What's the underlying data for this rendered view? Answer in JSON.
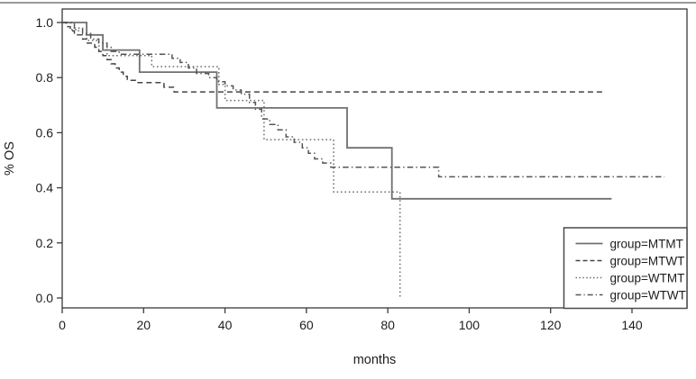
{
  "figure": {
    "background": "#ffffff",
    "top_border_color": "#9a9a9a",
    "axis_color": "#3a3a3a",
    "text_color": "#1d1d1d"
  },
  "chart_data": {
    "type": "line",
    "subtype": "kaplan-meier-step",
    "title": "",
    "xlabel": "months",
    "ylabel": "% OS",
    "xlim": [
      0,
      153
    ],
    "ylim": [
      -0.04,
      1.05
    ],
    "x_ticks": [
      0,
      20,
      40,
      60,
      80,
      100,
      120,
      140
    ],
    "y_ticks": [
      0.0,
      0.2,
      0.4,
      0.6,
      0.8,
      1.0
    ],
    "grid": false,
    "legend_position": "bottom-right",
    "series": [
      {
        "name": "group=MTMT",
        "line_style": "solid",
        "color": "#707070",
        "end_month": 135,
        "steps": [
          [
            0,
            1.0
          ],
          [
            6,
            0.955
          ],
          [
            10,
            0.9
          ],
          [
            19,
            0.82
          ],
          [
            38,
            0.69
          ],
          [
            70,
            0.545
          ],
          [
            81,
            0.36
          ]
        ]
      },
      {
        "name": "group=MTWT",
        "line_style": "dashed",
        "color": "#454545",
        "end_month": 133,
        "steps": [
          [
            0,
            1.0
          ],
          [
            1,
            0.985
          ],
          [
            2,
            0.97
          ],
          [
            3,
            0.955
          ],
          [
            5,
            0.94
          ],
          [
            6,
            0.925
          ],
          [
            8,
            0.91
          ],
          [
            9,
            0.895
          ],
          [
            10,
            0.88
          ],
          [
            11,
            0.865
          ],
          [
            12,
            0.85
          ],
          [
            13,
            0.835
          ],
          [
            14,
            0.82
          ],
          [
            15,
            0.805
          ],
          [
            16,
            0.79
          ],
          [
            18,
            0.782
          ],
          [
            25,
            0.765
          ],
          [
            27.5,
            0.748
          ]
        ]
      },
      {
        "name": "group=WTMT",
        "line_style": "dotted",
        "color": "#6e6e6e",
        "end_month": 83,
        "steps": [
          [
            0,
            1.0
          ],
          [
            2,
            0.975
          ],
          [
            4,
            0.955
          ],
          [
            6,
            0.935
          ],
          [
            9,
            0.915
          ],
          [
            11,
            0.88
          ],
          [
            22,
            0.84
          ],
          [
            38.5,
            0.775
          ],
          [
            40,
            0.717
          ],
          [
            49.6,
            0.575
          ],
          [
            66.7,
            0.385
          ],
          [
            83,
            0.0
          ]
        ]
      },
      {
        "name": "group=WTWT",
        "line_style": "dashdot",
        "color": "#555555",
        "end_month": 148,
        "steps": [
          [
            0,
            1.0
          ],
          [
            3,
            0.98
          ],
          [
            5,
            0.96
          ],
          [
            7,
            0.94
          ],
          [
            9,
            0.925
          ],
          [
            11,
            0.91
          ],
          [
            12,
            0.895
          ],
          [
            14,
            0.885
          ],
          [
            27,
            0.87
          ],
          [
            29,
            0.855
          ],
          [
            31,
            0.835
          ],
          [
            33,
            0.815
          ],
          [
            36,
            0.8
          ],
          [
            38,
            0.785
          ],
          [
            40,
            0.77
          ],
          [
            42,
            0.755
          ],
          [
            44,
            0.74
          ],
          [
            46,
            0.71
          ],
          [
            47.5,
            0.685
          ],
          [
            49,
            0.65
          ],
          [
            51,
            0.63
          ],
          [
            53,
            0.61
          ],
          [
            55,
            0.585
          ],
          [
            57,
            0.565
          ],
          [
            59,
            0.545
          ],
          [
            60.5,
            0.525
          ],
          [
            62,
            0.505
          ],
          [
            64,
            0.49
          ],
          [
            66,
            0.475
          ],
          [
            92.5,
            0.44
          ]
        ]
      }
    ],
    "legend": [
      {
        "label": "group=MTMT",
        "line_style": "solid"
      },
      {
        "label": "group=MTWT",
        "line_style": "dashed"
      },
      {
        "label": "group=WTMT",
        "line_style": "dotted"
      },
      {
        "label": "group=WTWT",
        "line_style": "dashdot"
      }
    ]
  }
}
